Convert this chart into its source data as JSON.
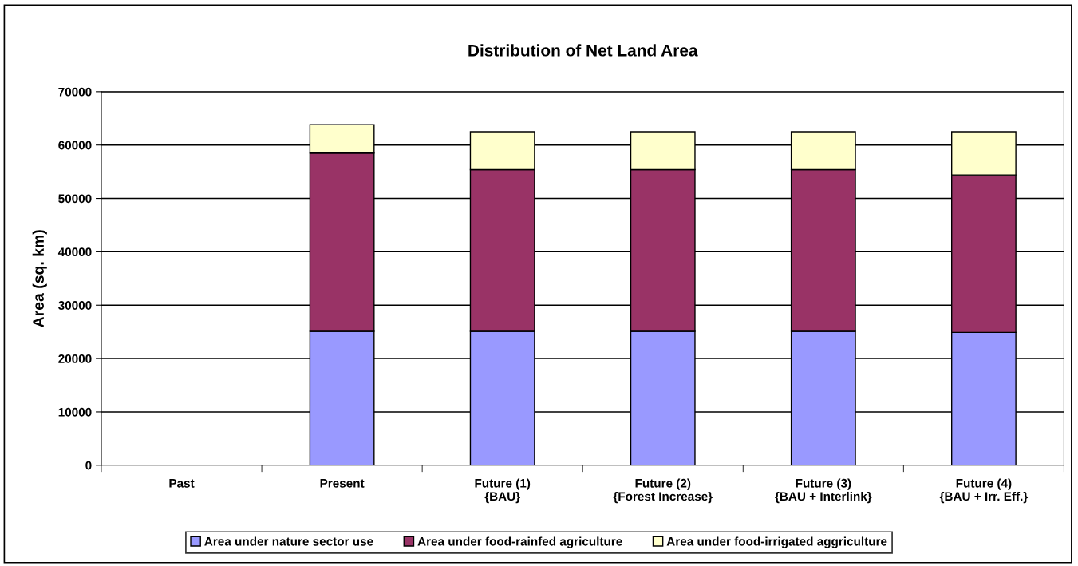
{
  "chart_data": {
    "type": "bar",
    "title": "Distribution of Net Land Area",
    "ylabel": "Area (sq. km)",
    "categories": [
      "Past",
      "Present",
      "Future (1)\n{BAU}",
      "Future (2)\n{Forest Increase}",
      "Future (3)\n{BAU + Interlink}",
      "Future (4)\n{BAU + Irr. Eff.}"
    ],
    "stacked": true,
    "series": [
      {
        "name": "Area under nature sector use",
        "color": "#9999ff",
        "values": [
          null,
          25100,
          25100,
          25100,
          25100,
          24900
        ]
      },
      {
        "name": "Area under food-rainfed agriculture",
        "color": "#993366",
        "values": [
          null,
          33400,
          30300,
          30300,
          30300,
          29500
        ]
      },
      {
        "name": "Area under food-irrigated aggriculture",
        "color": "#ffffcc",
        "values": [
          null,
          5300,
          7100,
          7100,
          7100,
          8100
        ]
      }
    ],
    "ylim": [
      0,
      70000
    ],
    "yticks": [
      0,
      10000,
      20000,
      30000,
      40000,
      50000,
      60000,
      70000
    ],
    "grid": "y",
    "legend": "bottom"
  }
}
